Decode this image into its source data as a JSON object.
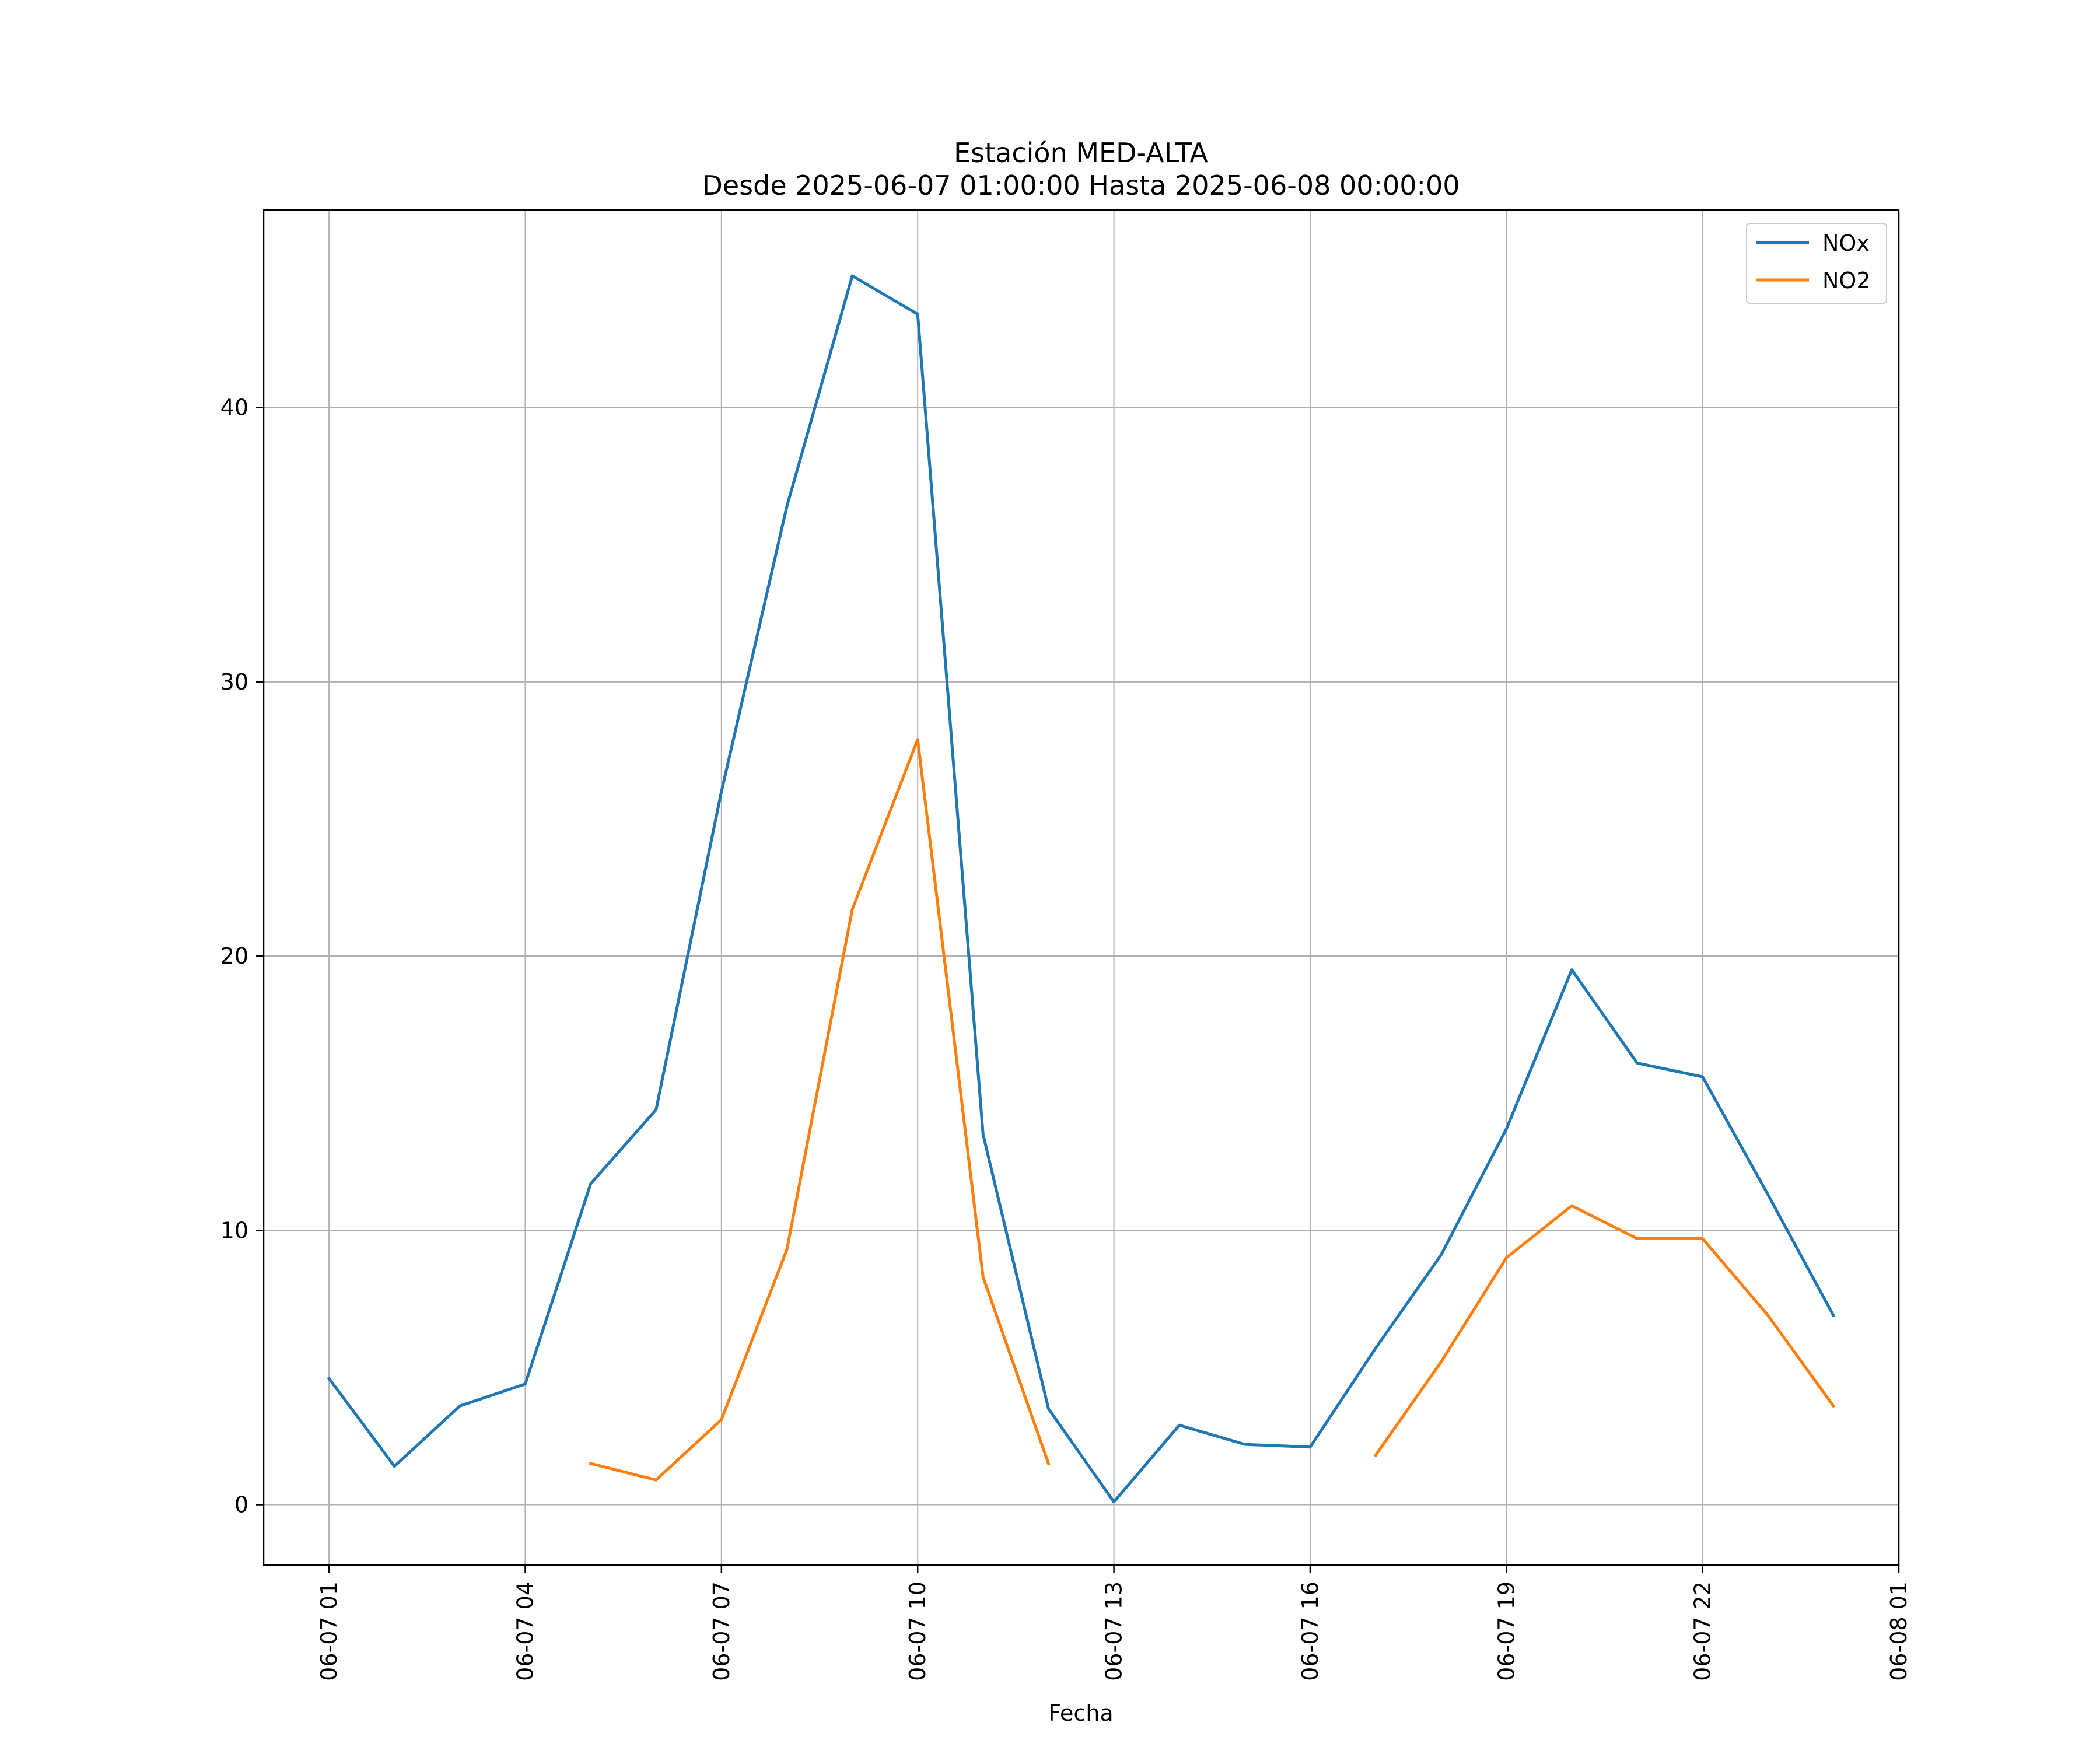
{
  "chart_data": {
    "type": "line",
    "title": "Estación MED-ALTA",
    "subtitle": "Desde 2025-06-07 01:00:00 Hasta 2025-06-08 00:00:00",
    "xlabel": "Fecha",
    "ylabel": "",
    "x_type": "datetime",
    "xlim": [
      "2025-06-07 00:00",
      "2025-06-08 01:00"
    ],
    "ylim": [
      -2.2,
      47.2
    ],
    "x_ticks": [
      "2025-06-07 01:00",
      "2025-06-07 04:00",
      "2025-06-07 07:00",
      "2025-06-07 10:00",
      "2025-06-07 13:00",
      "2025-06-07 16:00",
      "2025-06-07 19:00",
      "2025-06-07 22:00",
      "2025-06-08 01:00"
    ],
    "x_tick_labels": [
      "06-07 01",
      "06-07 04",
      "06-07 07",
      "06-07 10",
      "06-07 13",
      "06-07 16",
      "06-07 19",
      "06-07 22",
      "06-08 01"
    ],
    "y_ticks": [
      0,
      10,
      20,
      30,
      40
    ],
    "y_tick_labels": [
      "0",
      "10",
      "20",
      "30",
      "40"
    ],
    "grid": true,
    "legend_position": "top-right",
    "x": [
      "2025-06-07 01:00",
      "2025-06-07 02:00",
      "2025-06-07 03:00",
      "2025-06-07 04:00",
      "2025-06-07 05:00",
      "2025-06-07 06:00",
      "2025-06-07 07:00",
      "2025-06-07 08:00",
      "2025-06-07 09:00",
      "2025-06-07 10:00",
      "2025-06-07 11:00",
      "2025-06-07 12:00",
      "2025-06-07 13:00",
      "2025-06-07 14:00",
      "2025-06-07 15:00",
      "2025-06-07 16:00",
      "2025-06-07 17:00",
      "2025-06-07 18:00",
      "2025-06-07 19:00",
      "2025-06-07 20:00",
      "2025-06-07 21:00",
      "2025-06-07 22:00",
      "2025-06-07 23:00",
      "2025-06-08 00:00"
    ],
    "series": [
      {
        "name": "NOx",
        "color": "#1f77b4",
        "values": [
          4.6,
          1.4,
          3.6,
          4.4,
          11.7,
          14.4,
          26.0,
          36.4,
          44.8,
          43.4,
          13.5,
          3.5,
          0.1,
          2.9,
          2.2,
          2.1,
          5.7,
          9.1,
          13.7,
          19.5,
          16.1,
          15.6,
          11.3,
          6.9
        ]
      },
      {
        "name": "NO2",
        "color": "#ff7f0e",
        "values": [
          null,
          null,
          null,
          null,
          1.5,
          0.9,
          3.1,
          9.3,
          21.7,
          27.9,
          8.3,
          1.5,
          null,
          null,
          null,
          null,
          1.8,
          5.2,
          9.0,
          10.9,
          9.7,
          9.7,
          6.9,
          3.6
        ]
      }
    ]
  }
}
